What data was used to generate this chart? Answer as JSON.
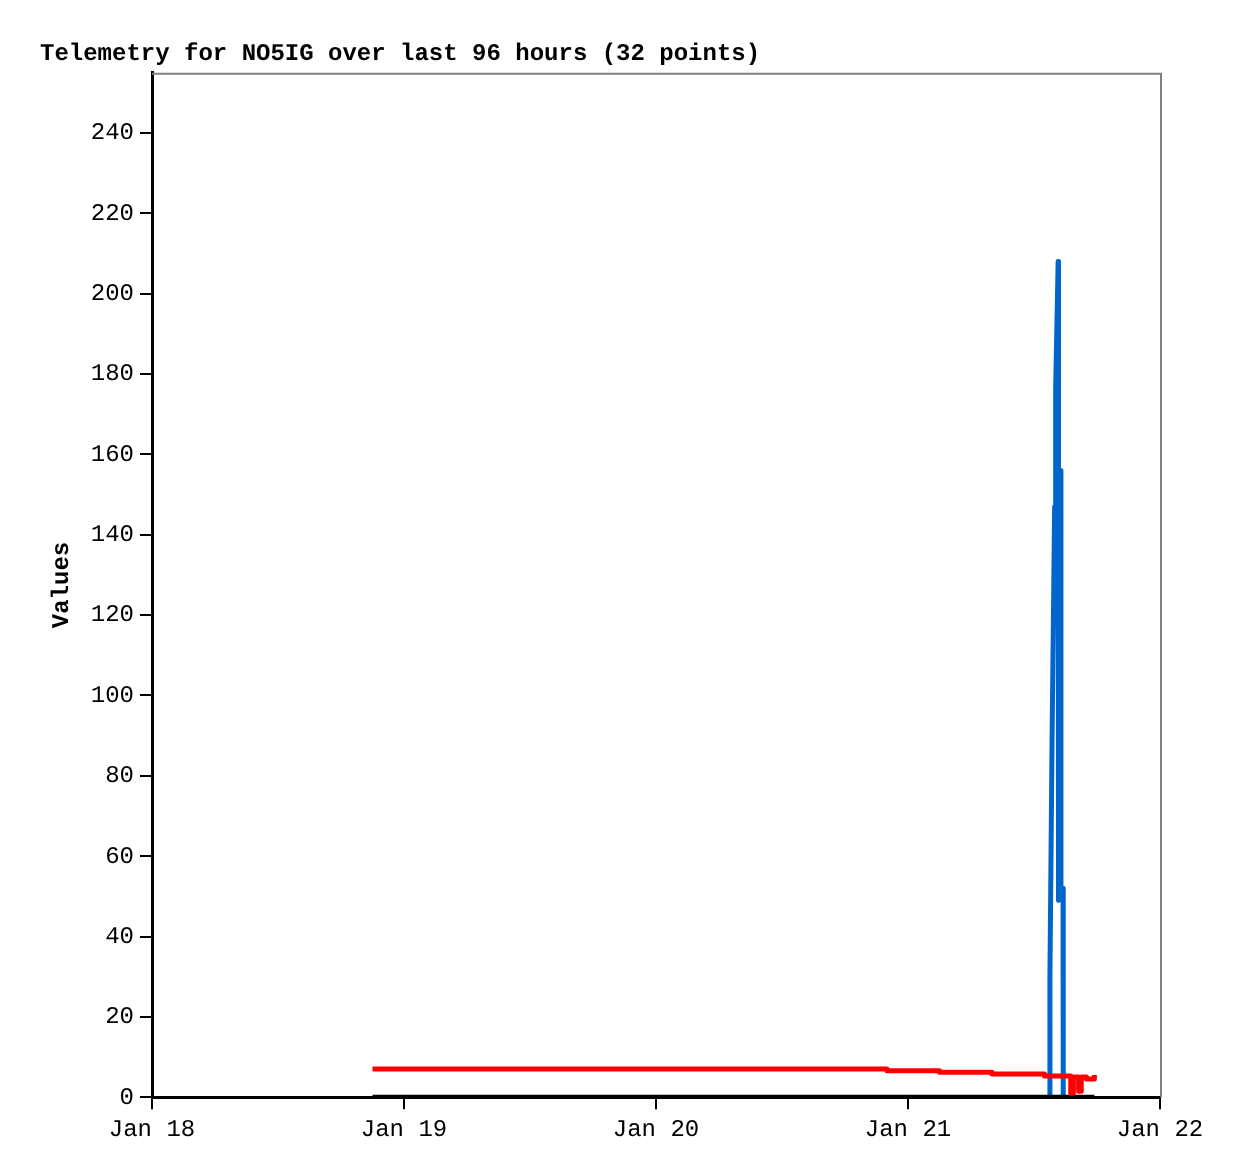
{
  "chart_data": {
    "type": "line",
    "title": "Telemetry for NO5IG over last 96 hours (32 points)",
    "ylabel": "Values",
    "xlim": [
      "--01-18",
      "--01-22"
    ],
    "xticks": [
      {
        "value": "--01-18",
        "label": "Jan 18"
      },
      {
        "value": "--01-19",
        "label": "Jan 19"
      },
      {
        "value": "--01-20",
        "label": "Jan 20"
      },
      {
        "value": "--01-21",
        "label": "Jan 21"
      },
      {
        "value": "--01-22",
        "label": "Jan 22"
      }
    ],
    "ylim": [
      0,
      255
    ],
    "yticks": [
      0,
      20,
      40,
      60,
      80,
      100,
      120,
      140,
      160,
      180,
      200,
      220,
      240
    ],
    "grid": false,
    "legend": false,
    "marker": "none",
    "line_style": "solid",
    "series": [
      {
        "type": "step",
        "color": "#ff0000",
        "x": [
          "--01-18T21:00",
          "--01-20T22:00",
          "--01-21T03:00",
          "--01-21T08:00",
          "--01-21T13:00",
          "--01-21T15:30",
          "--01-21T15:45",
          "--01-21T16:15",
          "--01-21T16:30",
          "--01-21T17:00",
          "--01-21T17:45"
        ],
        "values": [
          7,
          6.6,
          6.2,
          5.8,
          5.3,
          1,
          5,
          1.5,
          5,
          4.5,
          5.5
        ]
      },
      {
        "type": "step",
        "color": "#000000",
        "x": [
          "--01-18T21:00",
          "--01-21T17:45"
        ],
        "values": [
          0,
          0
        ]
      },
      {
        "color": "#0066cc",
        "x": [
          "--01-21T13:30",
          "--01-21T13:31",
          "--01-21T13:43",
          "--01-21T13:58",
          "--01-21T14:04",
          "--01-21T14:18",
          "--01-21T14:20",
          "--01-21T14:32",
          "--01-21T14:34",
          "--01-21T14:46",
          "--01-21T14:47"
        ],
        "values": [
          0,
          30,
          88,
          147,
          177,
          208,
          49,
          156,
          52,
          52,
          0
        ]
      }
    ]
  }
}
